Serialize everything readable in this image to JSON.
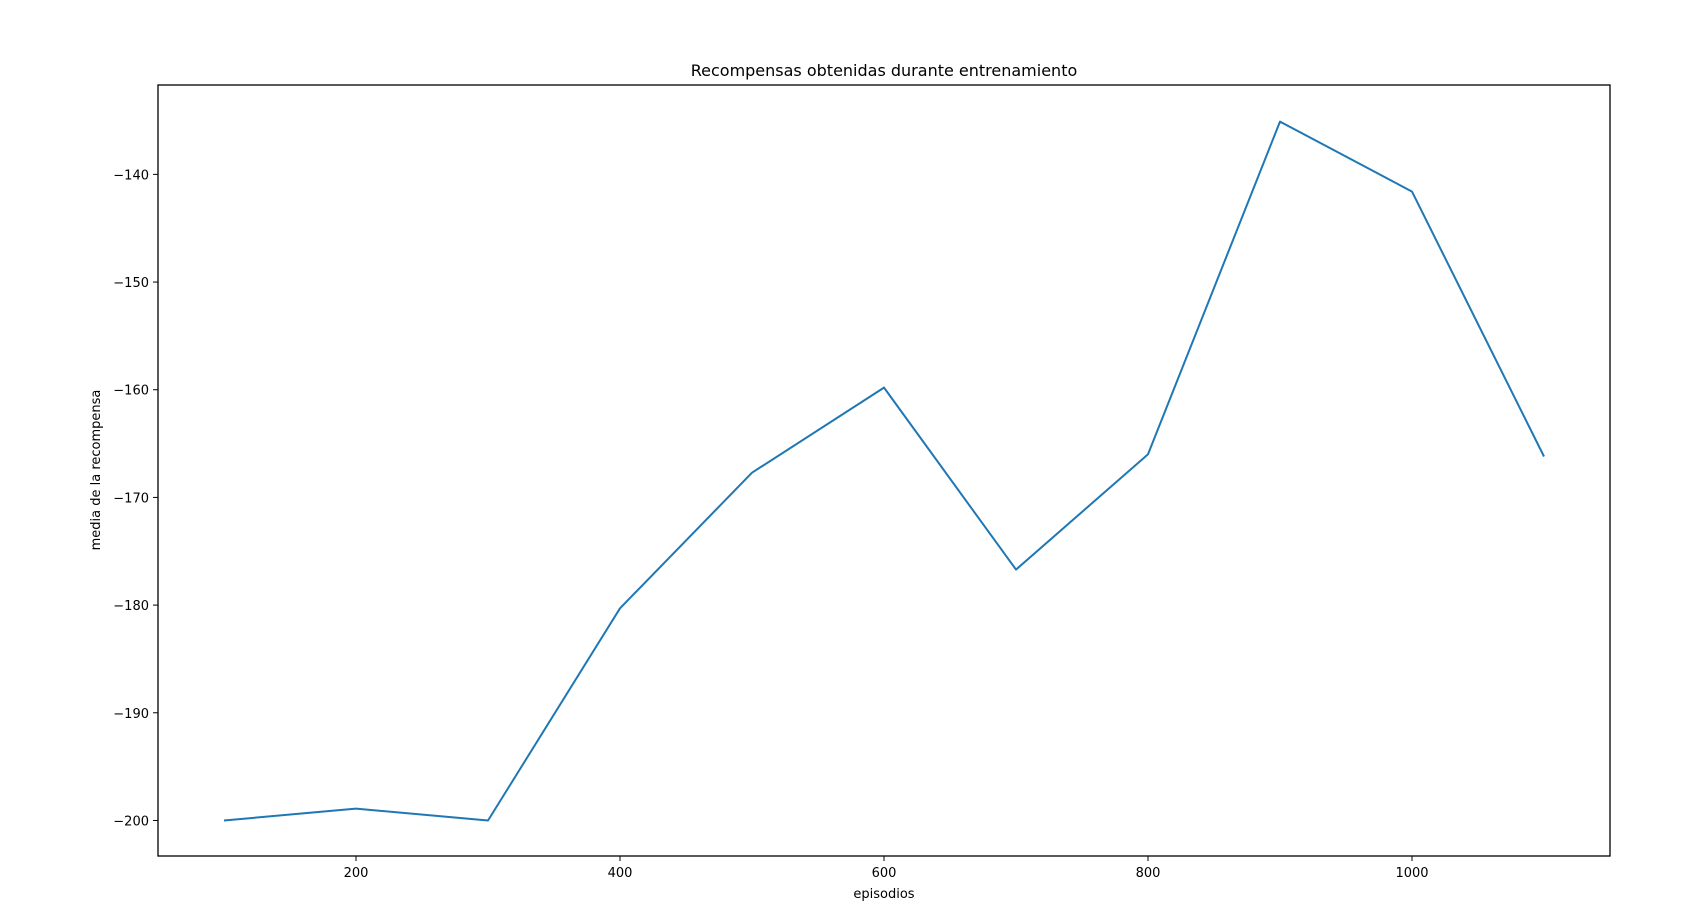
{
  "chart_data": {
    "type": "line",
    "title": "Recompensas obtenidas durante entrenamiento",
    "xlabel": "episodios",
    "ylabel": "media de la recompensa",
    "xlim": [
      50,
      1150
    ],
    "ylim": [
      -203.3,
      -131.7
    ],
    "xticks": [
      200,
      400,
      600,
      800,
      1000
    ],
    "yticks": [
      -200,
      -190,
      -180,
      -170,
      -160,
      -150,
      -140
    ],
    "grid": false,
    "line_color": "#1f77b4",
    "series": [
      {
        "x": [
          100,
          200,
          300,
          400,
          500,
          600,
          700,
          800,
          900,
          1000,
          1100
        ],
        "y": [
          -200.0,
          -198.9,
          -200.0,
          -180.3,
          -167.7,
          -159.8,
          -176.7,
          -166.0,
          -135.1,
          -141.6,
          -166.2
        ]
      }
    ]
  }
}
